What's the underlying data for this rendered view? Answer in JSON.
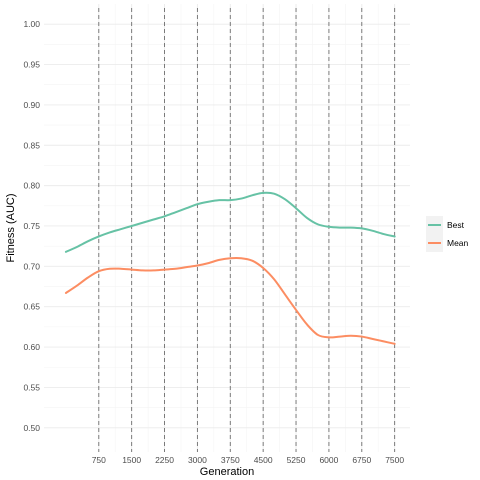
{
  "chart_data": {
    "type": "line",
    "xlabel": "Generation",
    "ylabel": "Fitness (AUC)",
    "x_ticks": [
      750,
      1500,
      2250,
      3000,
      3750,
      4500,
      5250,
      6000,
      6750,
      7500
    ],
    "x_tick_labels": [
      "750",
      "1500",
      "2250",
      "3000",
      "3750",
      "4500",
      "5250",
      "6000",
      "6750",
      "7500"
    ],
    "y_ticks": [
      0.5,
      0.55,
      0.6,
      0.65,
      0.7,
      0.75,
      0.8,
      0.85,
      0.9,
      0.95,
      1.0
    ],
    "y_tick_labels": [
      "0.50",
      "0.55",
      "0.60",
      "0.65",
      "0.70",
      "0.75",
      "0.80",
      "0.85",
      "0.90",
      "0.95",
      "1.00"
    ],
    "xlim": [
      -500,
      7850
    ],
    "ylim": [
      0.47,
      1.025
    ],
    "vlines": [
      750,
      1500,
      2250,
      3000,
      3750,
      4500,
      5250,
      6000,
      6750,
      7500
    ],
    "grid": true,
    "legend_position": "right",
    "series": [
      {
        "name": "Best",
        "color": "#66c2a5",
        "x": [
          0,
          250,
          500,
          750,
          1000,
          1250,
          1500,
          1750,
          2000,
          2250,
          2500,
          2750,
          3000,
          3250,
          3500,
          3750,
          4000,
          4250,
          4500,
          4750,
          5000,
          5250,
          5500,
          5750,
          6000,
          6250,
          6500,
          6750,
          7000,
          7250,
          7500
        ],
        "values": [
          0.718,
          0.724,
          0.731,
          0.737,
          0.742,
          0.746,
          0.75,
          0.754,
          0.758,
          0.762,
          0.767,
          0.772,
          0.777,
          0.78,
          0.782,
          0.782,
          0.784,
          0.788,
          0.791,
          0.79,
          0.783,
          0.772,
          0.76,
          0.752,
          0.749,
          0.748,
          0.748,
          0.747,
          0.744,
          0.74,
          0.737
        ]
      },
      {
        "name": "Mean",
        "color": "#fc8d62",
        "x": [
          0,
          250,
          500,
          750,
          1000,
          1250,
          1500,
          1750,
          2000,
          2250,
          2500,
          2750,
          3000,
          3250,
          3500,
          3750,
          4000,
          4250,
          4500,
          4750,
          5000,
          5250,
          5500,
          5750,
          6000,
          6250,
          6500,
          6750,
          7000,
          7250,
          7500
        ],
        "values": [
          0.667,
          0.676,
          0.686,
          0.694,
          0.697,
          0.697,
          0.696,
          0.695,
          0.695,
          0.696,
          0.697,
          0.699,
          0.701,
          0.704,
          0.708,
          0.71,
          0.71,
          0.707,
          0.698,
          0.684,
          0.665,
          0.646,
          0.628,
          0.615,
          0.612,
          0.613,
          0.614,
          0.613,
          0.61,
          0.607,
          0.604
        ]
      }
    ]
  }
}
